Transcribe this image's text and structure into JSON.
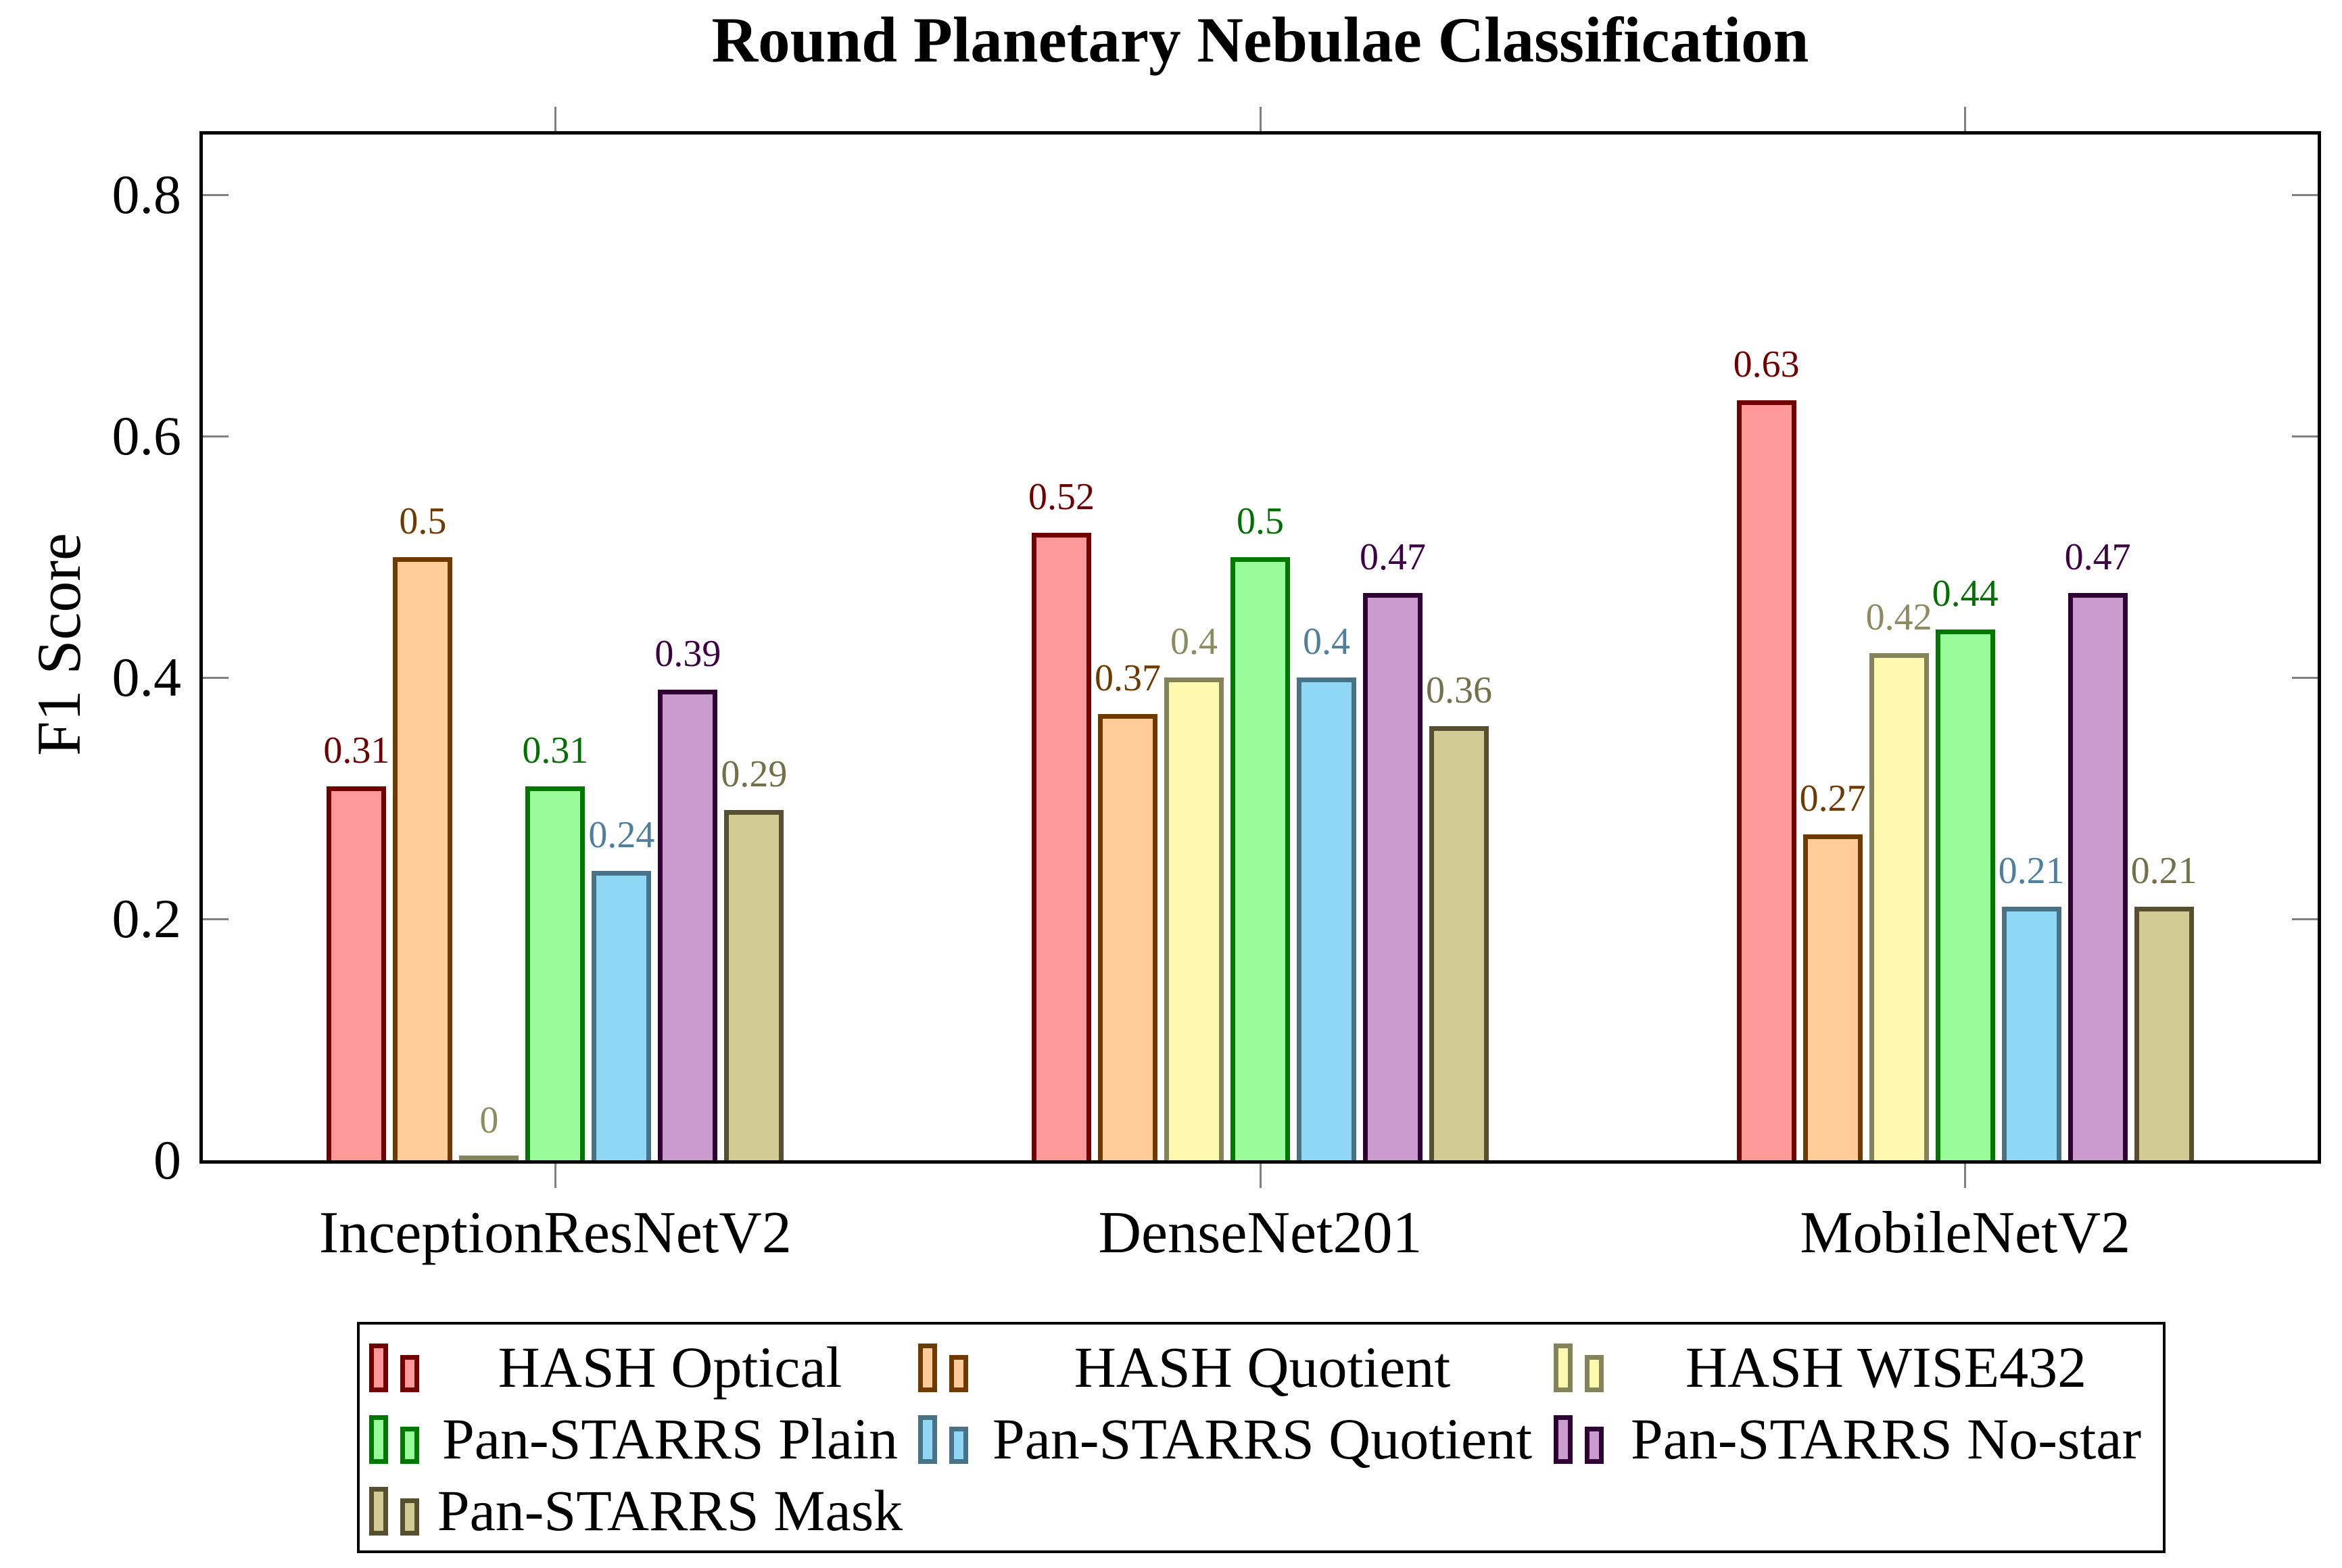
{
  "chart_data": {
    "type": "bar",
    "title": "Round Planetary Nebulae Classification",
    "ylabel": "F1 Score",
    "xlabel": "",
    "categories": [
      "InceptionResNetV2",
      "DenseNet201",
      "MobileNetV2"
    ],
    "series": [
      {
        "name": "HASH Optical",
        "fill": "#FF9898",
        "edge": "#700000",
        "label_color": "#700000",
        "values": [
          0.31,
          0.52,
          0.63
        ]
      },
      {
        "name": "HASH Quotient",
        "fill": "#FFCC99",
        "edge": "#6F3A00",
        "label_color": "#6F3A00",
        "values": [
          0.5,
          0.37,
          0.27
        ]
      },
      {
        "name": "HASH WISE432",
        "fill": "#FFF9AF",
        "edge": "#84845A",
        "label_color": "#8C8C61",
        "values": [
          0,
          0.4,
          0.42
        ]
      },
      {
        "name": "Pan-STARRS Plain",
        "fill": "#99FB99",
        "edge": "#007800",
        "label_color": "#007000",
        "values": [
          0.31,
          0.5,
          0.44
        ]
      },
      {
        "name": "Pan-STARRS Quotient",
        "fill": "#8FD8F5",
        "edge": "#4A7287",
        "label_color": "#4E7F9D",
        "values": [
          0.24,
          0.4,
          0.21
        ]
      },
      {
        "name": "Pan-STARRS No-star",
        "fill": "#C99BCE",
        "edge": "#2E0034",
        "label_color": "#3D0045",
        "values": [
          0.39,
          0.47,
          0.47
        ]
      },
      {
        "name": "Pan-STARRS Mask",
        "fill": "#D2CB93",
        "edge": "#565030",
        "label_color": "#71714B",
        "values": [
          0.29,
          0.36,
          0.21
        ]
      }
    ],
    "yticks": [
      0,
      0.2,
      0.4,
      0.6,
      0.8
    ],
    "ytick_labels": [
      "0",
      "0.2",
      "0.4",
      "0.6",
      "0.8"
    ],
    "ylim": [
      0,
      0.85
    ],
    "grid": false,
    "legend_position": "below",
    "axis_color": "#000000",
    "tick_color": "#808080"
  }
}
